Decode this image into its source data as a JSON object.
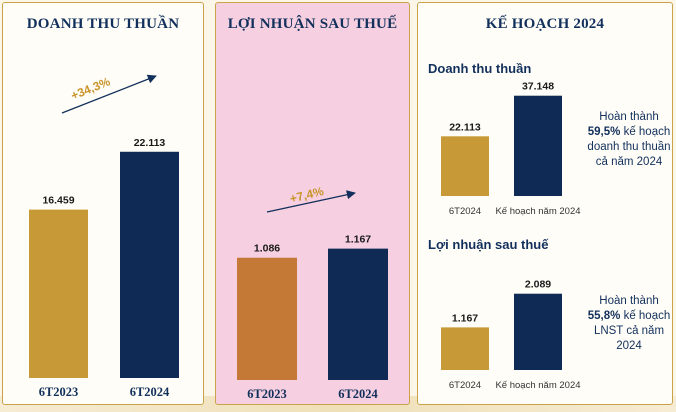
{
  "colors": {
    "gold": "#c89a37",
    "navy": "#0f2b55",
    "orange": "#c47a36",
    "pink_bg": "#f6cfe0",
    "growth": "#c9952c",
    "border": "#c9a24a"
  },
  "panels": {
    "revenue": {
      "title": "DOANH THU THUẦN"
    },
    "profit": {
      "title": "LỢI NHUẬN SAU THUẾ"
    },
    "plan": {
      "title": "KẾ HOẠCH 2024",
      "revenue_subtitle": "Doanh thu thuần",
      "profit_subtitle": "Lợi nhuận sau thuế",
      "revenue_note": {
        "before": "Hoàn thành",
        "pct": "59,5%",
        "after": "kế hoạch doanh thu thuần cả năm 2024"
      },
      "profit_note": {
        "before": "Hoàn thành",
        "pct": "55,8%",
        "after": "kế hoạch LNST cả năm 2024"
      }
    }
  },
  "chart_data": [
    {
      "type": "bar",
      "title": "DOANH THU THUẦN",
      "categories": [
        "6T2023",
        "6T2024"
      ],
      "values": [
        16459,
        22113
      ],
      "value_labels": [
        "16.459",
        "22.113"
      ],
      "colors": [
        "#c89a37",
        "#0f2b55"
      ],
      "growth_label": "+34,3%",
      "ylim": [
        0,
        26000
      ]
    },
    {
      "type": "bar",
      "title": "LỢI NHUẬN SAU THUẾ",
      "categories": [
        "6T2023",
        "6T2024"
      ],
      "values": [
        1086,
        1167
      ],
      "value_labels": [
        "1.086",
        "1.167"
      ],
      "colors": [
        "#c47a36",
        "#0f2b55"
      ],
      "growth_label": "+7,4%",
      "ylim": [
        0,
        3500
      ]
    },
    {
      "type": "bar",
      "title": "Doanh thu thuần",
      "categories": [
        "6T2024",
        "Kế hoạch năm 2024"
      ],
      "values": [
        22113,
        37148
      ],
      "value_labels": [
        "22.113",
        "37.148"
      ],
      "colors": [
        "#c89a37",
        "#0f2b55"
      ],
      "ylim": [
        0,
        40000
      ]
    },
    {
      "type": "bar",
      "title": "Lợi nhuận sau thuế",
      "categories": [
        "6T2024",
        "Kế hoạch năm 2024"
      ],
      "values": [
        1167,
        2089
      ],
      "value_labels": [
        "1.167",
        "2.089"
      ],
      "colors": [
        "#c89a37",
        "#0f2b55"
      ],
      "ylim": [
        0,
        2300
      ]
    }
  ]
}
